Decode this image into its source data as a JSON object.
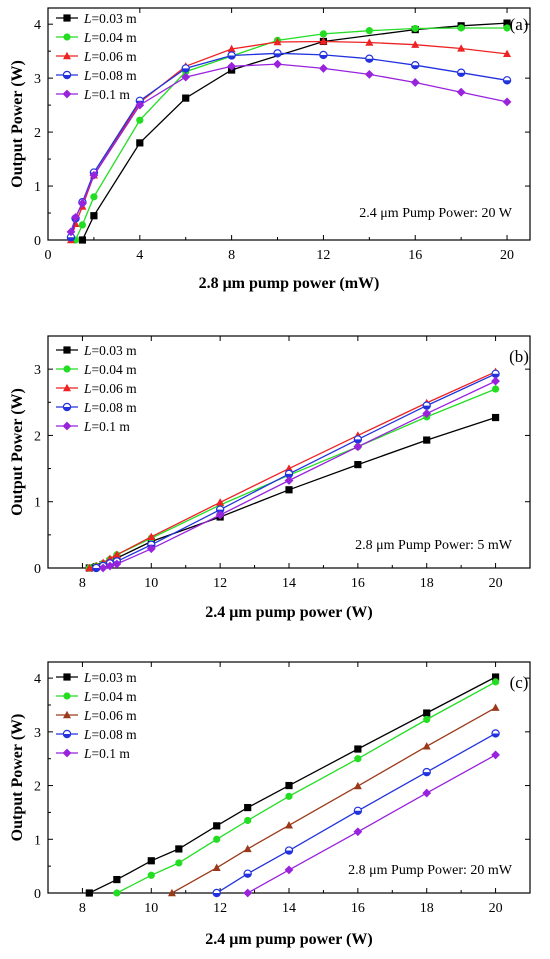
{
  "chart_data": [
    {
      "type": "line",
      "panel_label": "(a)",
      "annotation": "2.4 μm Pump Power: 20 W",
      "xlabel": "2.8 μm pump power (mW)",
      "ylabel": "Output Power (W)",
      "xlim": [
        0,
        21
      ],
      "ylim": [
        0,
        4.3
      ],
      "xticks": [
        "0",
        "4",
        "8",
        "12",
        "16",
        "20"
      ],
      "yticks": [
        "0",
        "1",
        "2",
        "3",
        "4"
      ],
      "legend_position": "top-left",
      "series": [
        {
          "name": "L=0.03 m",
          "color": "#000000",
          "marker": "square",
          "x": [
            1.5,
            2,
            4,
            6,
            8,
            12,
            16,
            18,
            20
          ],
          "y": [
            0,
            0.45,
            1.8,
            2.63,
            3.15,
            3.68,
            3.9,
            3.97,
            4.02
          ]
        },
        {
          "name": "L=0.04 m",
          "color": "#22dd22",
          "marker": "circle",
          "x": [
            1.2,
            1.5,
            2,
            4,
            6,
            10,
            12,
            14,
            16,
            18,
            20
          ],
          "y": [
            0,
            0.28,
            0.8,
            2.22,
            3.12,
            3.7,
            3.82,
            3.88,
            3.92,
            3.93,
            3.93
          ]
        },
        {
          "name": "L=0.06 m",
          "color": "#ee2222",
          "marker": "triangle",
          "x": [
            1,
            1.2,
            1.5,
            2,
            4,
            6,
            8,
            10,
            12,
            14,
            16,
            18,
            20
          ],
          "y": [
            0,
            0.3,
            0.62,
            1.2,
            2.55,
            3.22,
            3.54,
            3.67,
            3.68,
            3.66,
            3.62,
            3.55,
            3.45
          ]
        },
        {
          "name": "L=0.08 m",
          "color": "#2233dd",
          "marker": "half-circle",
          "x": [
            1,
            1.2,
            1.5,
            2,
            4,
            6,
            8,
            10,
            12,
            14,
            16,
            18,
            20
          ],
          "y": [
            0.05,
            0.4,
            0.7,
            1.25,
            2.58,
            3.18,
            3.42,
            3.46,
            3.43,
            3.36,
            3.24,
            3.1,
            2.96
          ]
        },
        {
          "name": "L=0.1 m",
          "color": "#9922dd",
          "marker": "diamond",
          "x": [
            1,
            1.2,
            1.5,
            2,
            4,
            6,
            8,
            10,
            12,
            14,
            16,
            18,
            20
          ],
          "y": [
            0.15,
            0.42,
            0.68,
            1.2,
            2.5,
            3.02,
            3.22,
            3.26,
            3.18,
            3.07,
            2.92,
            2.74,
            2.56
          ]
        }
      ]
    },
    {
      "type": "line",
      "panel_label": "(b)",
      "annotation": "2.8 μm Pump Power: 5 mW",
      "xlabel": "2.4 μm pump power (W)",
      "ylabel": "Output Power (W)",
      "xlim": [
        7,
        21
      ],
      "ylim": [
        0,
        3.5
      ],
      "xticks": [
        "8",
        "10",
        "12",
        "14",
        "16",
        "18",
        "20"
      ],
      "yticks": [
        "0",
        "1",
        "2",
        "3"
      ],
      "legend_position": "top-left",
      "series": [
        {
          "name": "L=0.03 m",
          "color": "#000000",
          "marker": "square",
          "x": [
            8.2,
            8.4,
            8.6,
            8.8,
            9,
            10,
            12,
            14,
            16,
            18,
            20
          ],
          "y": [
            0,
            0.02,
            0.05,
            0.1,
            0.15,
            0.4,
            0.77,
            1.18,
            1.56,
            1.93,
            2.27
          ]
        },
        {
          "name": "L=0.04 m",
          "color": "#22dd22",
          "marker": "circle",
          "x": [
            8.2,
            8.4,
            8.6,
            8.8,
            9,
            10,
            12,
            14,
            16,
            18,
            20
          ],
          "y": [
            0,
            0.03,
            0.07,
            0.13,
            0.2,
            0.45,
            0.95,
            1.4,
            1.83,
            2.28,
            2.7
          ]
        },
        {
          "name": "L=0.06 m",
          "color": "#ee2222",
          "marker": "triangle",
          "x": [
            8.2,
            8.4,
            8.6,
            8.8,
            9,
            10,
            12,
            14,
            16,
            18,
            20
          ],
          "y": [
            0,
            0.03,
            0.08,
            0.14,
            0.2,
            0.47,
            0.99,
            1.5,
            2.0,
            2.49,
            2.96
          ]
        },
        {
          "name": "L=0.08 m",
          "color": "#2233dd",
          "marker": "half-circle",
          "x": [
            8.4,
            8.6,
            8.8,
            9,
            10,
            12,
            14,
            16,
            18,
            20
          ],
          "y": [
            0,
            0.03,
            0.07,
            0.1,
            0.35,
            0.88,
            1.42,
            1.94,
            2.45,
            2.93
          ]
        },
        {
          "name": "L=0.1 m",
          "color": "#9922dd",
          "marker": "diamond",
          "x": [
            8.6,
            8.8,
            9,
            10,
            12,
            14,
            16,
            18,
            20
          ],
          "y": [
            0,
            0.03,
            0.06,
            0.29,
            0.8,
            1.32,
            1.83,
            2.33,
            2.82
          ]
        }
      ]
    },
    {
      "type": "line",
      "panel_label": "(c)",
      "annotation": "2.8 μm Pump Power: 20 mW",
      "xlabel": "2.4 μm pump power (W)",
      "ylabel": "Output Power (W)",
      "xlim": [
        7,
        21
      ],
      "ylim": [
        0,
        4.3
      ],
      "xticks": [
        "8",
        "10",
        "12",
        "14",
        "16",
        "18",
        "20"
      ],
      "yticks": [
        "0",
        "1",
        "2",
        "3",
        "4"
      ],
      "legend_position": "top-left",
      "series": [
        {
          "name": "L=0.03 m",
          "color": "#000000",
          "marker": "square",
          "x": [
            8.2,
            9,
            10,
            10.8,
            11.9,
            12.8,
            14,
            16,
            18,
            20
          ],
          "y": [
            0,
            0.25,
            0.6,
            0.82,
            1.25,
            1.59,
            2.0,
            2.68,
            3.35,
            4.02
          ]
        },
        {
          "name": "L=0.04 m",
          "color": "#22dd22",
          "marker": "circle",
          "x": [
            9,
            10,
            10.8,
            11.9,
            12.8,
            14,
            16,
            18,
            20
          ],
          "y": [
            0,
            0.33,
            0.56,
            1.0,
            1.35,
            1.8,
            2.5,
            3.23,
            3.93
          ]
        },
        {
          "name": "L=0.06 m",
          "color": "#9b3a1a",
          "marker": "triangle",
          "x": [
            10.6,
            11.9,
            12.8,
            14,
            16,
            18,
            20
          ],
          "y": [
            0,
            0.47,
            0.82,
            1.26,
            1.99,
            2.73,
            3.45
          ]
        },
        {
          "name": "L=0.08 m",
          "color": "#2233dd",
          "marker": "half-circle",
          "x": [
            11.9,
            12.8,
            14,
            16,
            18,
            20
          ],
          "y": [
            0,
            0.36,
            0.79,
            1.53,
            2.25,
            2.97
          ]
        },
        {
          "name": "L=0.1 m",
          "color": "#9922dd",
          "marker": "diamond",
          "x": [
            12.8,
            14,
            16,
            18,
            20
          ],
          "y": [
            0,
            0.43,
            1.14,
            1.86,
            2.57
          ]
        }
      ]
    }
  ]
}
